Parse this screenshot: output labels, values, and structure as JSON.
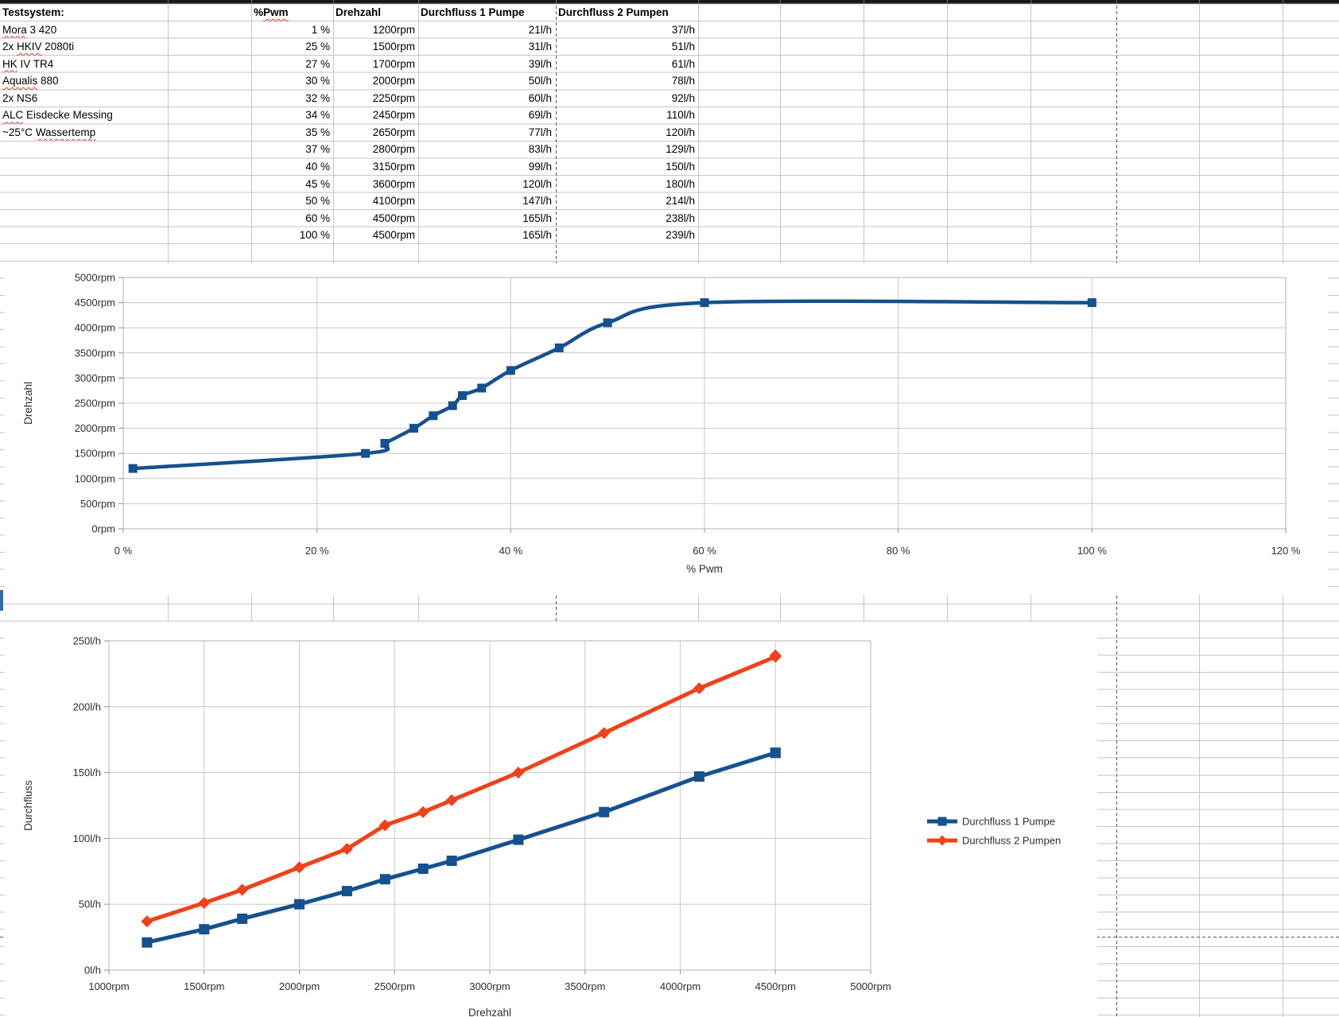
{
  "table": {
    "corner_header": "Testsystem:",
    "col_headers": [
      [
        {
          "t": "%",
          "w": false
        },
        {
          "t": "Pwm",
          "w": true
        }
      ],
      [
        {
          "t": "Drehzahl",
          "w": false
        }
      ],
      [
        {
          "t": "Durchfluss 1 Pumpe",
          "w": false
        }
      ],
      [
        {
          "t": "Durchfluss 2 Pumpen",
          "w": false
        }
      ]
    ],
    "system_info": [
      [
        {
          "t": "Mora",
          "w": true
        },
        {
          "t": " 3 420",
          "w": false
        }
      ],
      [
        {
          "t": "2x ",
          "w": false
        },
        {
          "t": "HKIV",
          "w": true
        },
        {
          "t": " 2080ti",
          "w": false
        }
      ],
      [
        {
          "t": "HK",
          "w": true
        },
        {
          "t": " IV TR4",
          "w": false
        }
      ],
      [
        {
          "t": "Aqualis",
          "w": true
        },
        {
          "t": " 880",
          "w": false
        }
      ],
      [
        {
          "t": "2x NS6",
          "w": false
        }
      ],
      [
        {
          "t": "ALC",
          "w": true
        },
        {
          "t": " Eisdecke Messing",
          "w": false
        }
      ],
      [
        {
          "t": "~25°C ",
          "w": false
        },
        {
          "t": "Wassertemp",
          "w": true
        }
      ]
    ],
    "rows": [
      {
        "pwm": "1 %",
        "rpm": "1200rpm",
        "d1": "21l/h",
        "d2": "37l/h"
      },
      {
        "pwm": "25 %",
        "rpm": "1500rpm",
        "d1": "31l/h",
        "d2": "51l/h"
      },
      {
        "pwm": "27 %",
        "rpm": "1700rpm",
        "d1": "39l/h",
        "d2": "61l/h"
      },
      {
        "pwm": "30 %",
        "rpm": "2000rpm",
        "d1": "50l/h",
        "d2": "78l/h"
      },
      {
        "pwm": "32 %",
        "rpm": "2250rpm",
        "d1": "60l/h",
        "d2": "92l/h"
      },
      {
        "pwm": "34 %",
        "rpm": "2450rpm",
        "d1": "69l/h",
        "d2": "110l/h"
      },
      {
        "pwm": "35 %",
        "rpm": "2650rpm",
        "d1": "77l/h",
        "d2": "120l/h"
      },
      {
        "pwm": "37 %",
        "rpm": "2800rpm",
        "d1": "83l/h",
        "d2": "129l/h"
      },
      {
        "pwm": "40 %",
        "rpm": "3150rpm",
        "d1": "99l/h",
        "d2": "150l/h"
      },
      {
        "pwm": "45 %",
        "rpm": "3600rpm",
        "d1": "120l/h",
        "d2": "180l/h"
      },
      {
        "pwm": "50 %",
        "rpm": "4100rpm",
        "d1": "147l/h",
        "d2": "214l/h"
      },
      {
        "pwm": "60 %",
        "rpm": "4500rpm",
        "d1": "165l/h",
        "d2": "238l/h"
      },
      {
        "pwm": "100 %",
        "rpm": "4500rpm",
        "d1": "165l/h",
        "d2": "239l/h"
      }
    ]
  },
  "chart_data": [
    {
      "type": "line",
      "smooth": true,
      "xlabel": "% Pwm",
      "ylabel": "Drehzahl",
      "xlim": [
        0,
        120
      ],
      "ylim": [
        0,
        5000
      ],
      "xticks": [
        0,
        20,
        40,
        60,
        80,
        100,
        120
      ],
      "xtick_labels": [
        "0 %",
        "20 %",
        "40 %",
        "60 %",
        "80 %",
        "100 %",
        "120 %"
      ],
      "yticks": [
        0,
        500,
        1000,
        1500,
        2000,
        2500,
        3000,
        3500,
        4000,
        4500,
        5000
      ],
      "ytick_labels": [
        "0rpm",
        "500rpm",
        "1000rpm",
        "1500rpm",
        "2000rpm",
        "2500rpm",
        "3000rpm",
        "3500rpm",
        "4000rpm",
        "4500rpm",
        "5000rpm"
      ],
      "grid": true,
      "legend": null,
      "series": [
        {
          "name": "Drehzahl",
          "color": "#14518e",
          "marker": "square",
          "x": [
            1,
            25,
            27,
            30,
            32,
            34,
            35,
            37,
            40,
            45,
            50,
            60,
            100
          ],
          "y": [
            1200,
            1500,
            1700,
            2000,
            2250,
            2450,
            2650,
            2800,
            3150,
            3600,
            4100,
            4500,
            4500
          ]
        }
      ]
    },
    {
      "type": "line",
      "smooth": false,
      "xlabel": "Drehzahl",
      "ylabel": "Durchfluss",
      "xlim": [
        1000,
        5000
      ],
      "ylim": [
        0,
        250
      ],
      "xticks": [
        1000,
        1500,
        2000,
        2500,
        3000,
        3500,
        4000,
        4500,
        5000
      ],
      "xtick_labels": [
        "1000rpm",
        "1500rpm",
        "2000rpm",
        "2500rpm",
        "3000rpm",
        "3500rpm",
        "4000rpm",
        "4500rpm",
        "5000rpm"
      ],
      "yticks": [
        0,
        50,
        100,
        150,
        200,
        250
      ],
      "ytick_labels": [
        "0l/h",
        "50l/h",
        "100l/h",
        "150l/h",
        "200l/h",
        "250l/h"
      ],
      "grid": true,
      "legend_position": "right",
      "series": [
        {
          "name": "Durchfluss 1 Pumpe",
          "color": "#14518e",
          "marker": "square",
          "x": [
            1200,
            1500,
            1700,
            2000,
            2250,
            2450,
            2650,
            2800,
            3150,
            3600,
            4100,
            4500,
            4500
          ],
          "y": [
            21,
            31,
            39,
            50,
            60,
            69,
            77,
            83,
            99,
            120,
            147,
            165,
            165
          ]
        },
        {
          "name": "Durchfluss 2 Pumpen",
          "color": "#f0411a",
          "marker": "diamond",
          "x": [
            1200,
            1500,
            1700,
            2000,
            2250,
            2450,
            2650,
            2800,
            3150,
            3600,
            4100,
            4500,
            4500
          ],
          "y": [
            37,
            51,
            61,
            78,
            92,
            110,
            120,
            129,
            150,
            180,
            214,
            238,
            239
          ]
        }
      ]
    }
  ],
  "colors": {
    "series_blue": "#14518e",
    "series_orange": "#f0411a",
    "grid_line": "#c6c6c6",
    "chart_grid": "#c9c9c9",
    "plot_border": "#b3b3b3",
    "page_break": "#5a5a5a",
    "wavy": "#d93b2b"
  }
}
